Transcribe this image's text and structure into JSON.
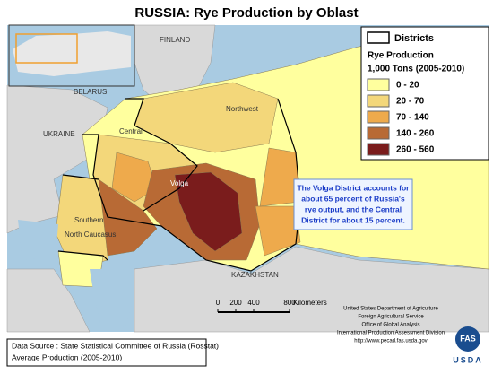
{
  "title": "RUSSIA: Rye Production by Oblast",
  "legend": {
    "districts": "Districts",
    "title": "Rye Production",
    "unit": "1,000 Tons (2005-2010)",
    "classes": [
      {
        "label": "0 - 20",
        "color": "#ffff9e"
      },
      {
        "label": "20 - 70",
        "color": "#f3d77a"
      },
      {
        "label": "70 - 140",
        "color": "#eeaa4c"
      },
      {
        "label": "140 - 260",
        "color": "#b86a35"
      },
      {
        "label": "260 - 560",
        "color": "#7a1c1c"
      }
    ]
  },
  "places": {
    "finland": "FINLAND",
    "belarus": "BELARUS",
    "ukraine": "UKRAINE",
    "northwest": "Northwest",
    "central": "Central",
    "volga": "Volga",
    "southern": "Southern",
    "caucasus": "North Caucasus",
    "kazakhstan": "KAZAKHSTAN"
  },
  "annotation": [
    "The Volga District accounts for",
    "about 65 percent of Russia's",
    "rye output, and the Central",
    "District for about 15 percent."
  ],
  "scale": {
    "ticks": [
      0,
      200,
      400,
      800
    ],
    "unit": "Kilometers"
  },
  "source": [
    "Data Source : State Statistical Committee of Russia (Rosstat)",
    "Average Production (2005-2010)"
  ],
  "agency": [
    "United States Department of Agriculture",
    "Foreign Agricultural Service",
    "Office of Global Analysis",
    "International Production Assessment Division",
    "http://www.pecad.fas.usda.gov"
  ],
  "logo": [
    "FAS",
    "USDA"
  ]
}
